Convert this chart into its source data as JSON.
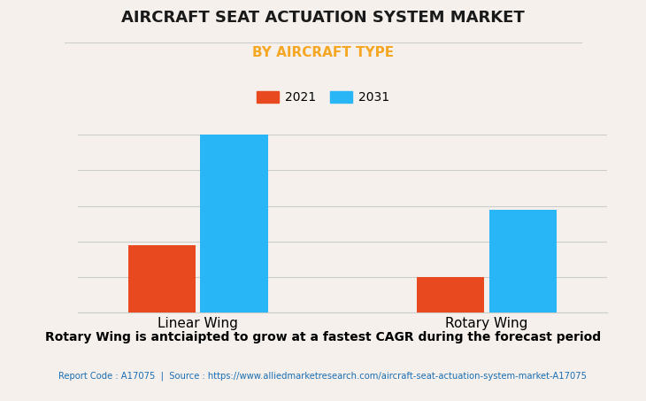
{
  "title": "AIRCRAFT SEAT ACTUATION SYSTEM MARKET",
  "subtitle": "BY AIRCRAFT TYPE",
  "categories": [
    "Linear Wing",
    "Rotary Wing"
  ],
  "series": [
    {
      "label": "2021",
      "values": [
        38,
        20
      ],
      "color": "#e8491e"
    },
    {
      "label": "2031",
      "values": [
        100,
        58
      ],
      "color": "#29b6f6"
    }
  ],
  "background_color": "#f5f0eb",
  "plot_bg_color": "#f5f0eb",
  "title_fontsize": 13,
  "subtitle_fontsize": 11,
  "subtitle_color": "#f5a623",
  "legend_fontsize": 10,
  "xlabel_fontsize": 11,
  "grid_color": "#cccccc",
  "footer_text": "Rotary Wing is antciaipted to grow at a fastest CAGR during the forecast period",
  "source_text": "Report Code : A17075  |  Source : https://www.alliedmarketresearch.com/aircraft-seat-actuation-system-market-A17075",
  "source_color": "#1a6eb5",
  "footer_color": "#000000",
  "bar_width": 0.28,
  "ylim": [
    0,
    108
  ]
}
